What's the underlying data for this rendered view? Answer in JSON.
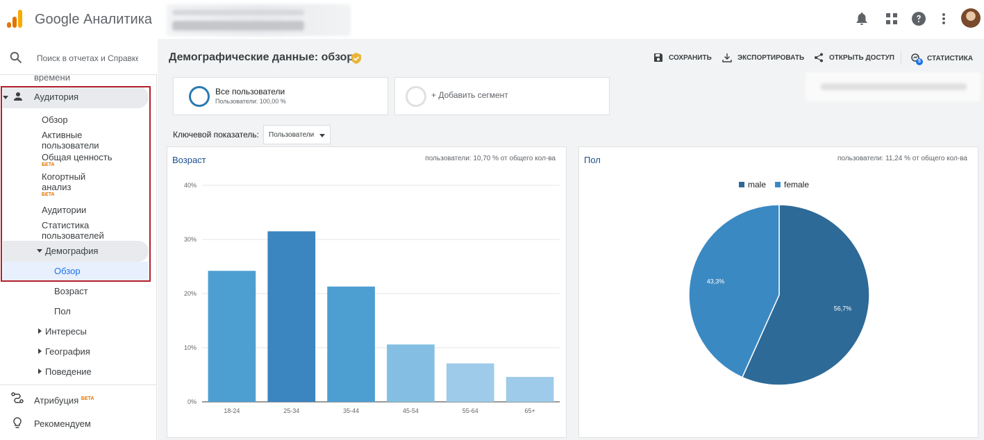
{
  "header": {
    "app_name": "Google Аналитика",
    "logo_colors": [
      "#f9ab00",
      "#e37400",
      "#e37400"
    ],
    "icons": [
      "bell-icon",
      "apps-grid-icon",
      "help-icon",
      "more-vert-icon"
    ]
  },
  "sidebar": {
    "search_placeholder": "Поиск в отчетах и Справке",
    "partial_item": "времени",
    "audience": {
      "label": "Аудитория",
      "items": [
        {
          "label": "Обзор"
        },
        {
          "label": "Активные пользователи"
        },
        {
          "label": "Общая ценность",
          "badge": "БЕТА"
        },
        {
          "label": "Когортный анализ",
          "badge": "БЕТА"
        },
        {
          "label": "Аудитории"
        },
        {
          "label": "Статистика пользователей"
        }
      ],
      "demography": {
        "label": "Демография",
        "items": [
          {
            "label": "Обзор"
          },
          {
            "label": "Возраст"
          },
          {
            "label": "Пол"
          }
        ]
      },
      "groups": [
        {
          "label": "Интересы"
        },
        {
          "label": "География"
        },
        {
          "label": "Поведение"
        }
      ]
    },
    "attribution": {
      "label": "Атрибуция",
      "badge": "БЕТА"
    },
    "recommend": {
      "label": "Рекомендуем"
    }
  },
  "page": {
    "title": "Демографические данные: обзор",
    "actions": {
      "save": "СОХРАНИТЬ",
      "export": "ЭКСПОРТИРОВАТЬ",
      "share": "ОТКРЫТЬ ДОСТУП",
      "insights": "СТАТИСТИКА",
      "insights_count": "5"
    },
    "segments": {
      "all_users": "Все пользователи",
      "all_users_sub": "Пользователи: 100,00 %",
      "add_segment": "+ Добавить сегмент"
    },
    "key_metric": {
      "label": "Ключевой показатель:",
      "value": "Пользователи"
    }
  },
  "age_panel": {
    "title": "Возраст",
    "note": "пользователи: 10,70 % от общего кол-ва"
  },
  "gender_panel": {
    "title": "Пол",
    "note": "пользователи: 11,24 % от общего кол-ва"
  },
  "chart_data": [
    {
      "type": "bar",
      "title": "Возраст",
      "categories": [
        "18-24",
        "25-34",
        "35-44",
        "45-54",
        "55-64",
        "65+"
      ],
      "values": [
        24.2,
        31.5,
        21.3,
        10.6,
        7.1,
        4.6
      ],
      "colors": [
        "#4e9fd1",
        "#3b85c0",
        "#4e9fd1",
        "#84bfe3",
        "#9ecbe9",
        "#9ecbe9"
      ],
      "ylim": [
        0,
        40
      ],
      "y_ticks": [
        0,
        10,
        20,
        30,
        40
      ],
      "y_tick_labels": [
        "0%",
        "10%",
        "20%",
        "30%",
        "40%"
      ],
      "grid": true
    },
    {
      "type": "pie",
      "title": "Пол",
      "slices": [
        {
          "name": "male",
          "value": 56.7,
          "label": "56,7%",
          "color": "#2d6a97"
        },
        {
          "name": "female",
          "value": 43.3,
          "label": "43,3%",
          "color": "#3b89c3"
        }
      ],
      "legend_position": "top"
    }
  ]
}
